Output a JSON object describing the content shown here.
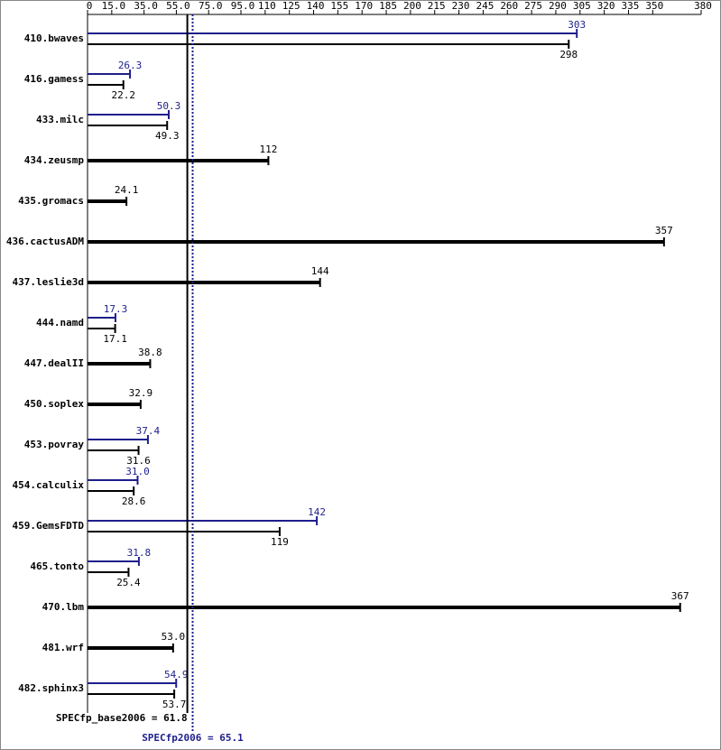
{
  "chart_data": {
    "type": "spec-bar",
    "categories": [
      "410.bwaves",
      "416.gamess",
      "433.milc",
      "434.zeusmp",
      "435.gromacs",
      "436.cactusADM",
      "437.leslie3d",
      "444.namd",
      "447.dealII",
      "450.soplex",
      "453.povray",
      "454.calculix",
      "459.GemsFDTD",
      "465.tonto",
      "470.lbm",
      "481.wrf",
      "482.sphinx3"
    ],
    "base": {
      "color": "#000000",
      "values": [
        298,
        22.2,
        49.3,
        112,
        24.1,
        357,
        144,
        17.1,
        38.8,
        32.9,
        31.6,
        28.6,
        119,
        25.4,
        367,
        53.0,
        53.7
      ],
      "value_labels": [
        "298",
        "22.2",
        "49.3",
        "112",
        "24.1",
        "357",
        "144",
        "17.1",
        "38.8",
        "32.9",
        "31.6",
        "28.6",
        "119",
        "25.4",
        "367",
        "53.0",
        "53.7"
      ]
    },
    "peak": {
      "color": "#1e1e8c",
      "values": [
        303,
        26.3,
        50.3,
        null,
        null,
        null,
        null,
        17.3,
        null,
        null,
        37.4,
        31.0,
        142,
        31.8,
        null,
        null,
        54.9
      ],
      "value_labels": [
        "303",
        "26.3",
        "50.3",
        null,
        null,
        null,
        null,
        "17.3",
        null,
        null,
        "37.4",
        "31.0",
        "142",
        "31.8",
        null,
        null,
        "54.9"
      ]
    },
    "xlim": [
      0,
      380
    ],
    "xticks": [
      0,
      {
        "value": 15,
        "label": "15.0"
      },
      {
        "value": 35,
        "label": "35.0"
      },
      {
        "value": 55,
        "label": "55.0"
      },
      {
        "value": 75,
        "label": "75.0"
      },
      {
        "value": 95,
        "label": "95.0"
      },
      110,
      125,
      140,
      155,
      170,
      185,
      200,
      215,
      230,
      245,
      260,
      275,
      290,
      305,
      320,
      335,
      350,
      380
    ],
    "base_metric": {
      "label": "SPECfp_base2006 = 61.8",
      "value": 61.8
    },
    "peak_metric": {
      "label": "SPECfp2006 = 65.1",
      "value": 65.1
    }
  }
}
